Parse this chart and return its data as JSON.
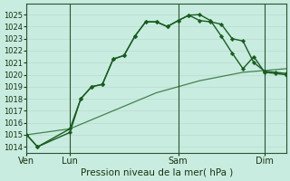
{
  "xlabel": "Pression niveau de la mer( hPa )",
  "ylim": [
    1013.5,
    1025.9
  ],
  "xlim": [
    0,
    72
  ],
  "yticks": [
    1014,
    1015,
    1016,
    1017,
    1018,
    1019,
    1020,
    1021,
    1022,
    1023,
    1024,
    1025
  ],
  "xtick_positions": [
    0,
    12,
    42,
    66
  ],
  "xtick_labels": [
    "Ven",
    "Lun",
    "Sam",
    "Dim"
  ],
  "vlines": [
    0,
    12,
    42,
    66
  ],
  "background_color": "#c8ece0",
  "grid_color": "#dde8e4",
  "line_color": "#1a5c20",
  "line_color2": "#2d7a35",
  "line1_x": [
    0,
    3,
    12,
    15,
    18,
    21,
    24,
    27,
    30,
    33,
    36,
    39,
    42,
    45,
    48,
    51,
    54,
    57,
    60,
    63,
    66,
    69,
    72
  ],
  "line1_y": [
    1015.0,
    1014.0,
    1015.2,
    1018.0,
    1019.0,
    1019.2,
    1021.3,
    1021.6,
    1023.2,
    1024.4,
    1024.4,
    1024.0,
    1024.5,
    1024.95,
    1024.5,
    1024.4,
    1024.2,
    1023.0,
    1022.8,
    1021.0,
    1020.3,
    1020.2,
    1020.1
  ],
  "line2_x": [
    0,
    3,
    12,
    15,
    18,
    21,
    24,
    27,
    30,
    33,
    36,
    39,
    42,
    45,
    48,
    51,
    54,
    57,
    60,
    63,
    66,
    69,
    72
  ],
  "line2_y": [
    1015.0,
    1014.0,
    1015.5,
    1018.0,
    1019.0,
    1019.2,
    1021.3,
    1021.6,
    1023.2,
    1024.4,
    1024.4,
    1024.0,
    1024.5,
    1024.95,
    1025.0,
    1024.5,
    1023.2,
    1021.8,
    1020.5,
    1021.5,
    1020.2,
    1020.1,
    1020.0
  ],
  "line3_x": [
    0,
    12,
    24,
    36,
    48,
    60,
    72
  ],
  "line3_y": [
    1015.0,
    1015.5,
    1017.0,
    1018.5,
    1019.5,
    1020.2,
    1020.5
  ]
}
